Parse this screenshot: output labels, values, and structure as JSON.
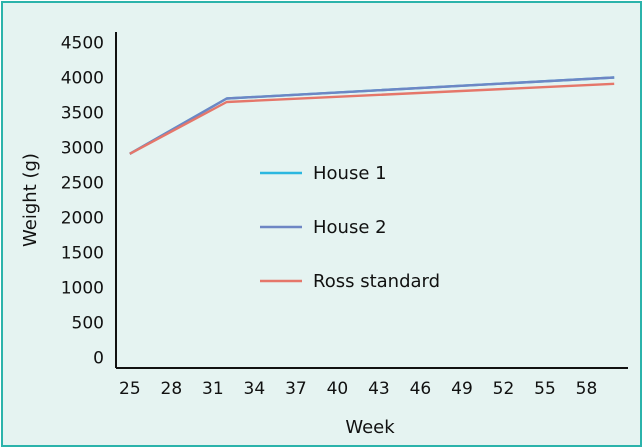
{
  "chart_data": {
    "type": "line",
    "xlabel": "Week",
    "ylabel": "Weight (g)",
    "x_ticks": [
      25,
      28,
      31,
      34,
      37,
      40,
      43,
      46,
      49,
      52,
      55,
      58
    ],
    "y_ticks": [
      0,
      500,
      1000,
      1500,
      2000,
      2500,
      3000,
      3500,
      4000,
      4500
    ],
    "xlim": [
      24,
      61
    ],
    "ylim": [
      -150,
      4650
    ],
    "grid": false,
    "legend_position": "center",
    "series": [
      {
        "name": "House 1",
        "color": "#2bb7e0",
        "x": [
          25,
          32,
          60
        ],
        "y": [
          2910,
          3700,
          4000
        ]
      },
      {
        "name": "House 2",
        "color": "#6e86c4",
        "x": [
          25,
          32,
          60
        ],
        "y": [
          2910,
          3700,
          4000
        ]
      },
      {
        "name": "Ross standard",
        "color": "#e5766a",
        "x": [
          25,
          32,
          60
        ],
        "y": [
          2910,
          3650,
          3910
        ]
      }
    ]
  }
}
